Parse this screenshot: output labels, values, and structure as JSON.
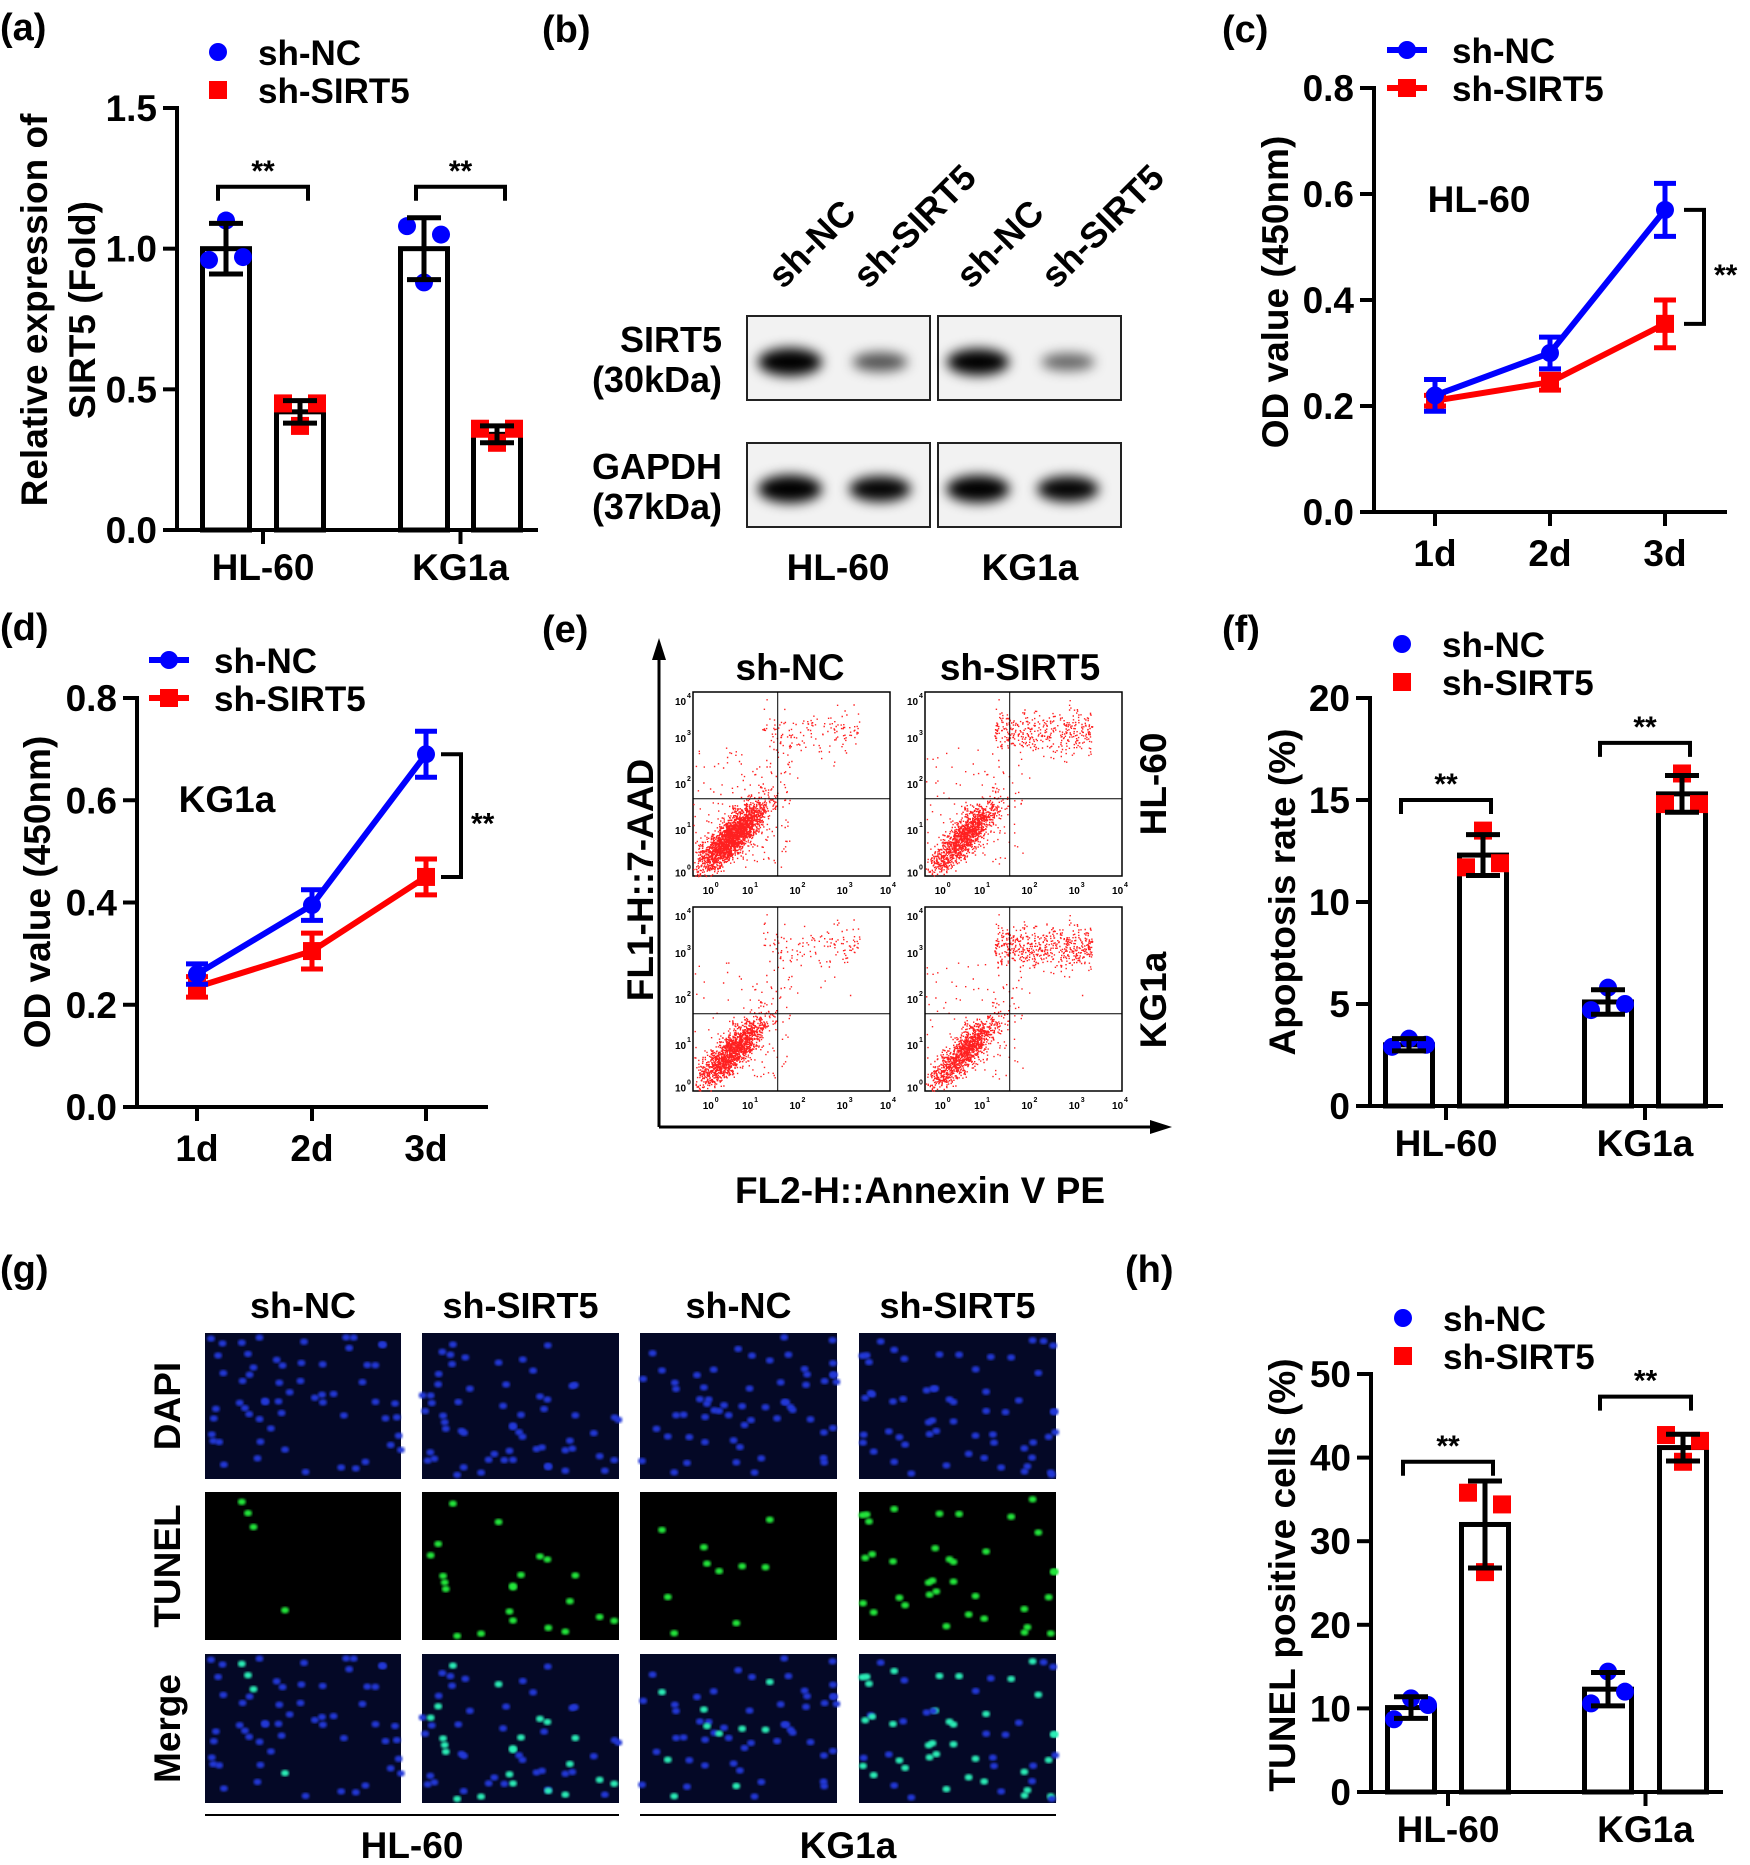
{
  "panel_labels": [
    "(a)",
    "(b)",
    "(c)",
    "(d)",
    "(e)",
    "(f)",
    "(g)",
    "(h)"
  ],
  "colors": {
    "sh_nc": "#0000ff",
    "sh_sirt5": "#ff0000",
    "axis": "#000000"
  },
  "legend": {
    "sh_nc": "sh-NC",
    "sh_sirt5": "sh-SIRT5"
  },
  "significance": "**",
  "chart_data": [
    {
      "panel": "a",
      "type": "bar",
      "ylabel_lines": [
        "Relative expression of",
        "SIRT5 (Fold)"
      ],
      "ylim": [
        0,
        1.5
      ],
      "yticks": [
        0,
        0.5,
        1.0,
        1.5
      ],
      "ytick_labels": [
        "0.0",
        "0.5",
        "1.0",
        "1.5"
      ],
      "categories": [
        "HL-60",
        "KG1a"
      ],
      "series": [
        {
          "name": "sh-NC",
          "values": [
            1.0,
            1.0
          ],
          "errors": [
            0.09,
            0.11
          ],
          "points": [
            [
              0.96,
              1.1,
              0.97
            ],
            [
              1.08,
              0.88,
              1.05
            ]
          ]
        },
        {
          "name": "sh-SIRT5",
          "values": [
            0.42,
            0.34
          ],
          "errors": [
            0.04,
            0.03
          ],
          "points": [
            [
              0.45,
              0.37,
              0.45
            ],
            [
              0.36,
              0.31,
              0.36
            ]
          ]
        }
      ],
      "annotations": [
        {
          "group": "HL-60",
          "text": "**",
          "bracket_y": 1.22
        },
        {
          "group": "KG1a",
          "text": "**",
          "bracket_y": 1.22
        }
      ],
      "legend_position": "top"
    },
    {
      "panel": "c",
      "type": "line",
      "inset_label": "HL-60",
      "ylabel": "OD value (450nm)",
      "ylim": [
        0,
        0.8
      ],
      "yticks": [
        0,
        0.2,
        0.4,
        0.6,
        0.8
      ],
      "ytick_labels": [
        "0.0",
        "0.2",
        "0.4",
        "0.6",
        "0.8"
      ],
      "x": [
        "1d",
        "2d",
        "3d"
      ],
      "series": [
        {
          "name": "sh-NC",
          "values": [
            0.22,
            0.3,
            0.57
          ],
          "errors": [
            0.03,
            0.03,
            0.05
          ]
        },
        {
          "name": "sh-SIRT5",
          "values": [
            0.21,
            0.245,
            0.355
          ],
          "errors": [
            0.01,
            0.015,
            0.045
          ]
        }
      ],
      "annotations": [
        {
          "at": "3d",
          "text": "**"
        }
      ],
      "legend_position": "top"
    },
    {
      "panel": "d",
      "type": "line",
      "inset_label": "KG1a",
      "ylabel": "OD value (450nm)",
      "ylim": [
        0,
        0.8
      ],
      "yticks": [
        0,
        0.2,
        0.4,
        0.6,
        0.8
      ],
      "ytick_labels": [
        "0.0",
        "0.2",
        "0.4",
        "0.6",
        "0.8"
      ],
      "x": [
        "1d",
        "2d",
        "3d"
      ],
      "series": [
        {
          "name": "sh-NC",
          "values": [
            0.26,
            0.395,
            0.69
          ],
          "errors": [
            0.02,
            0.03,
            0.045
          ]
        },
        {
          "name": "sh-SIRT5",
          "values": [
            0.235,
            0.305,
            0.45
          ],
          "errors": [
            0.02,
            0.035,
            0.035
          ]
        }
      ],
      "annotations": [
        {
          "at": "3d",
          "text": "**"
        }
      ],
      "legend_position": "top"
    },
    {
      "panel": "e",
      "type": "scatter",
      "xlabel": "FL2-H::Annexin V PE",
      "ylabel": "FL1-H::7-AAD",
      "columns": [
        "sh-NC",
        "sh-SIRT5"
      ],
      "rows": [
        "HL-60",
        "KG1a"
      ],
      "tick_base": "10",
      "tick_exponents": [
        "0",
        "1",
        "2",
        "3",
        "4"
      ],
      "axis_scale": "log"
    },
    {
      "panel": "f",
      "type": "bar",
      "ylabel": "Apoptosis rate (%)",
      "ylim": [
        0,
        20
      ],
      "yticks": [
        0,
        5,
        10,
        15,
        20
      ],
      "ytick_labels": [
        "0",
        "5",
        "10",
        "15",
        "20"
      ],
      "categories": [
        "HL-60",
        "KG1a"
      ],
      "series": [
        {
          "name": "sh-NC",
          "values": [
            3.0,
            5.1
          ],
          "errors": [
            0.3,
            0.6
          ],
          "points": [
            [
              2.9,
              3.3,
              3.0
            ],
            [
              4.7,
              5.8,
              5.0
            ]
          ]
        },
        {
          "name": "sh-SIRT5",
          "values": [
            12.3,
            15.3
          ],
          "errors": [
            1.0,
            0.9
          ],
          "points": [
            [
              11.7,
              13.5,
              11.9
            ],
            [
              14.8,
              16.3,
              14.8
            ]
          ]
        }
      ],
      "annotations": [
        {
          "group": "HL-60",
          "text": "**",
          "bracket_y": 15.0
        },
        {
          "group": "KG1a",
          "text": "**",
          "bracket_y": 17.8
        }
      ],
      "legend_position": "top"
    },
    {
      "panel": "h",
      "type": "bar",
      "ylabel": "TUNEL positive cells (%)",
      "ylim": [
        0,
        50
      ],
      "yticks": [
        0,
        10,
        20,
        30,
        40,
        50
      ],
      "ytick_labels": [
        "0",
        "10",
        "20",
        "30",
        "40",
        "50"
      ],
      "categories": [
        "HL-60",
        "KG1a"
      ],
      "series": [
        {
          "name": "sh-NC",
          "values": [
            10.1,
            12.3
          ],
          "errors": [
            1.3,
            2.0
          ],
          "points": [
            [
              8.7,
              11.2,
              10.4
            ],
            [
              10.6,
              14.4,
              12.0
            ]
          ]
        },
        {
          "name": "sh-SIRT5",
          "values": [
            32.0,
            41.2
          ],
          "errors": [
            5.2,
            1.6
          ],
          "points": [
            [
              35.8,
              26.3,
              34.4
            ],
            [
              42.7,
              39.5,
              42.0
            ]
          ]
        }
      ],
      "annotations": [
        {
          "group": "HL-60",
          "text": "**",
          "bracket_y": 39.5
        },
        {
          "group": "KG1a",
          "text": "**",
          "bracket_y": 47.3
        }
      ],
      "legend_position": "top"
    }
  ],
  "western_blot": {
    "lanes": [
      "sh-NC",
      "sh-SIRT5",
      "sh-NC",
      "sh-SIRT5"
    ],
    "rows": [
      {
        "name": "SIRT5",
        "size": "(30kDa)"
      },
      {
        "name": "GAPDH",
        "size": "(37kDa)"
      }
    ],
    "cell_lines": [
      "HL-60",
      "KG1a"
    ]
  },
  "tunel_images": {
    "columns": [
      "sh-NC",
      "sh-SIRT5",
      "sh-NC",
      "sh-SIRT5"
    ],
    "rows": [
      "DAPI",
      "TUNEL",
      "Merge"
    ],
    "cell_lines": [
      "HL-60",
      "KG1a"
    ]
  }
}
